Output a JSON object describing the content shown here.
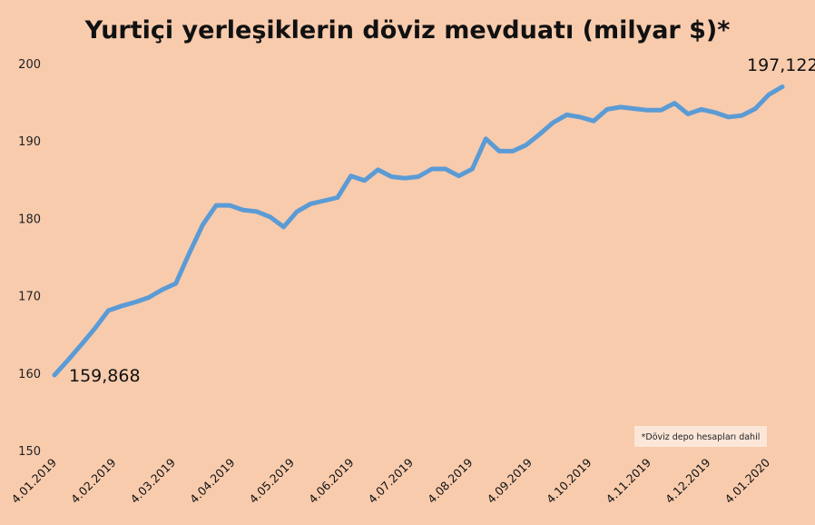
{
  "chart_data": {
    "type": "line",
    "title": "Yurtiçi yerleşiklerin döviz mevduatı (milyar $)*",
    "xlabel": "",
    "ylabel": "",
    "ylim": [
      150,
      200
    ],
    "yticks": [
      150,
      160,
      170,
      180,
      190,
      200
    ],
    "yticks_text": [
      "150",
      "160",
      "170",
      "180",
      "190",
      "200"
    ],
    "x_tick_labels": [
      "4.01.2019",
      "4.02.2019",
      "4.03.2019",
      "4.04.2019",
      "4.05.2019",
      "4.06.2019",
      "4.07.2019",
      "4.08.2019",
      "4.09.2019",
      "4.10.2019",
      "4.11.2019",
      "4.12.2019",
      "4.01.2020"
    ],
    "series": [
      {
        "color": "#5b9bd5",
        "values": [
          159.868,
          161.8,
          163.8,
          165.9,
          168.2,
          168.8,
          169.3,
          169.9,
          170.9,
          171.7,
          175.6,
          179.3,
          181.8,
          181.8,
          181.2,
          181.0,
          180.3,
          179.0,
          181.0,
          182.0,
          182.4,
          182.8,
          185.6,
          185.0,
          186.4,
          185.5,
          185.3,
          185.5,
          186.5,
          186.5,
          185.6,
          186.5,
          190.4,
          188.8,
          188.8,
          189.6,
          191.0,
          192.5,
          193.5,
          193.2,
          192.7,
          194.2,
          194.5,
          194.3,
          194.1,
          194.1,
          195.0,
          193.6,
          194.2,
          193.8,
          193.2,
          193.4,
          194.3,
          196.1,
          197.122
        ]
      }
    ],
    "annotations": {
      "start_value": "159,868",
      "end_value": "197,122",
      "note": "*Döviz depo hesapları dahil"
    },
    "grid": false,
    "legend": "none"
  }
}
